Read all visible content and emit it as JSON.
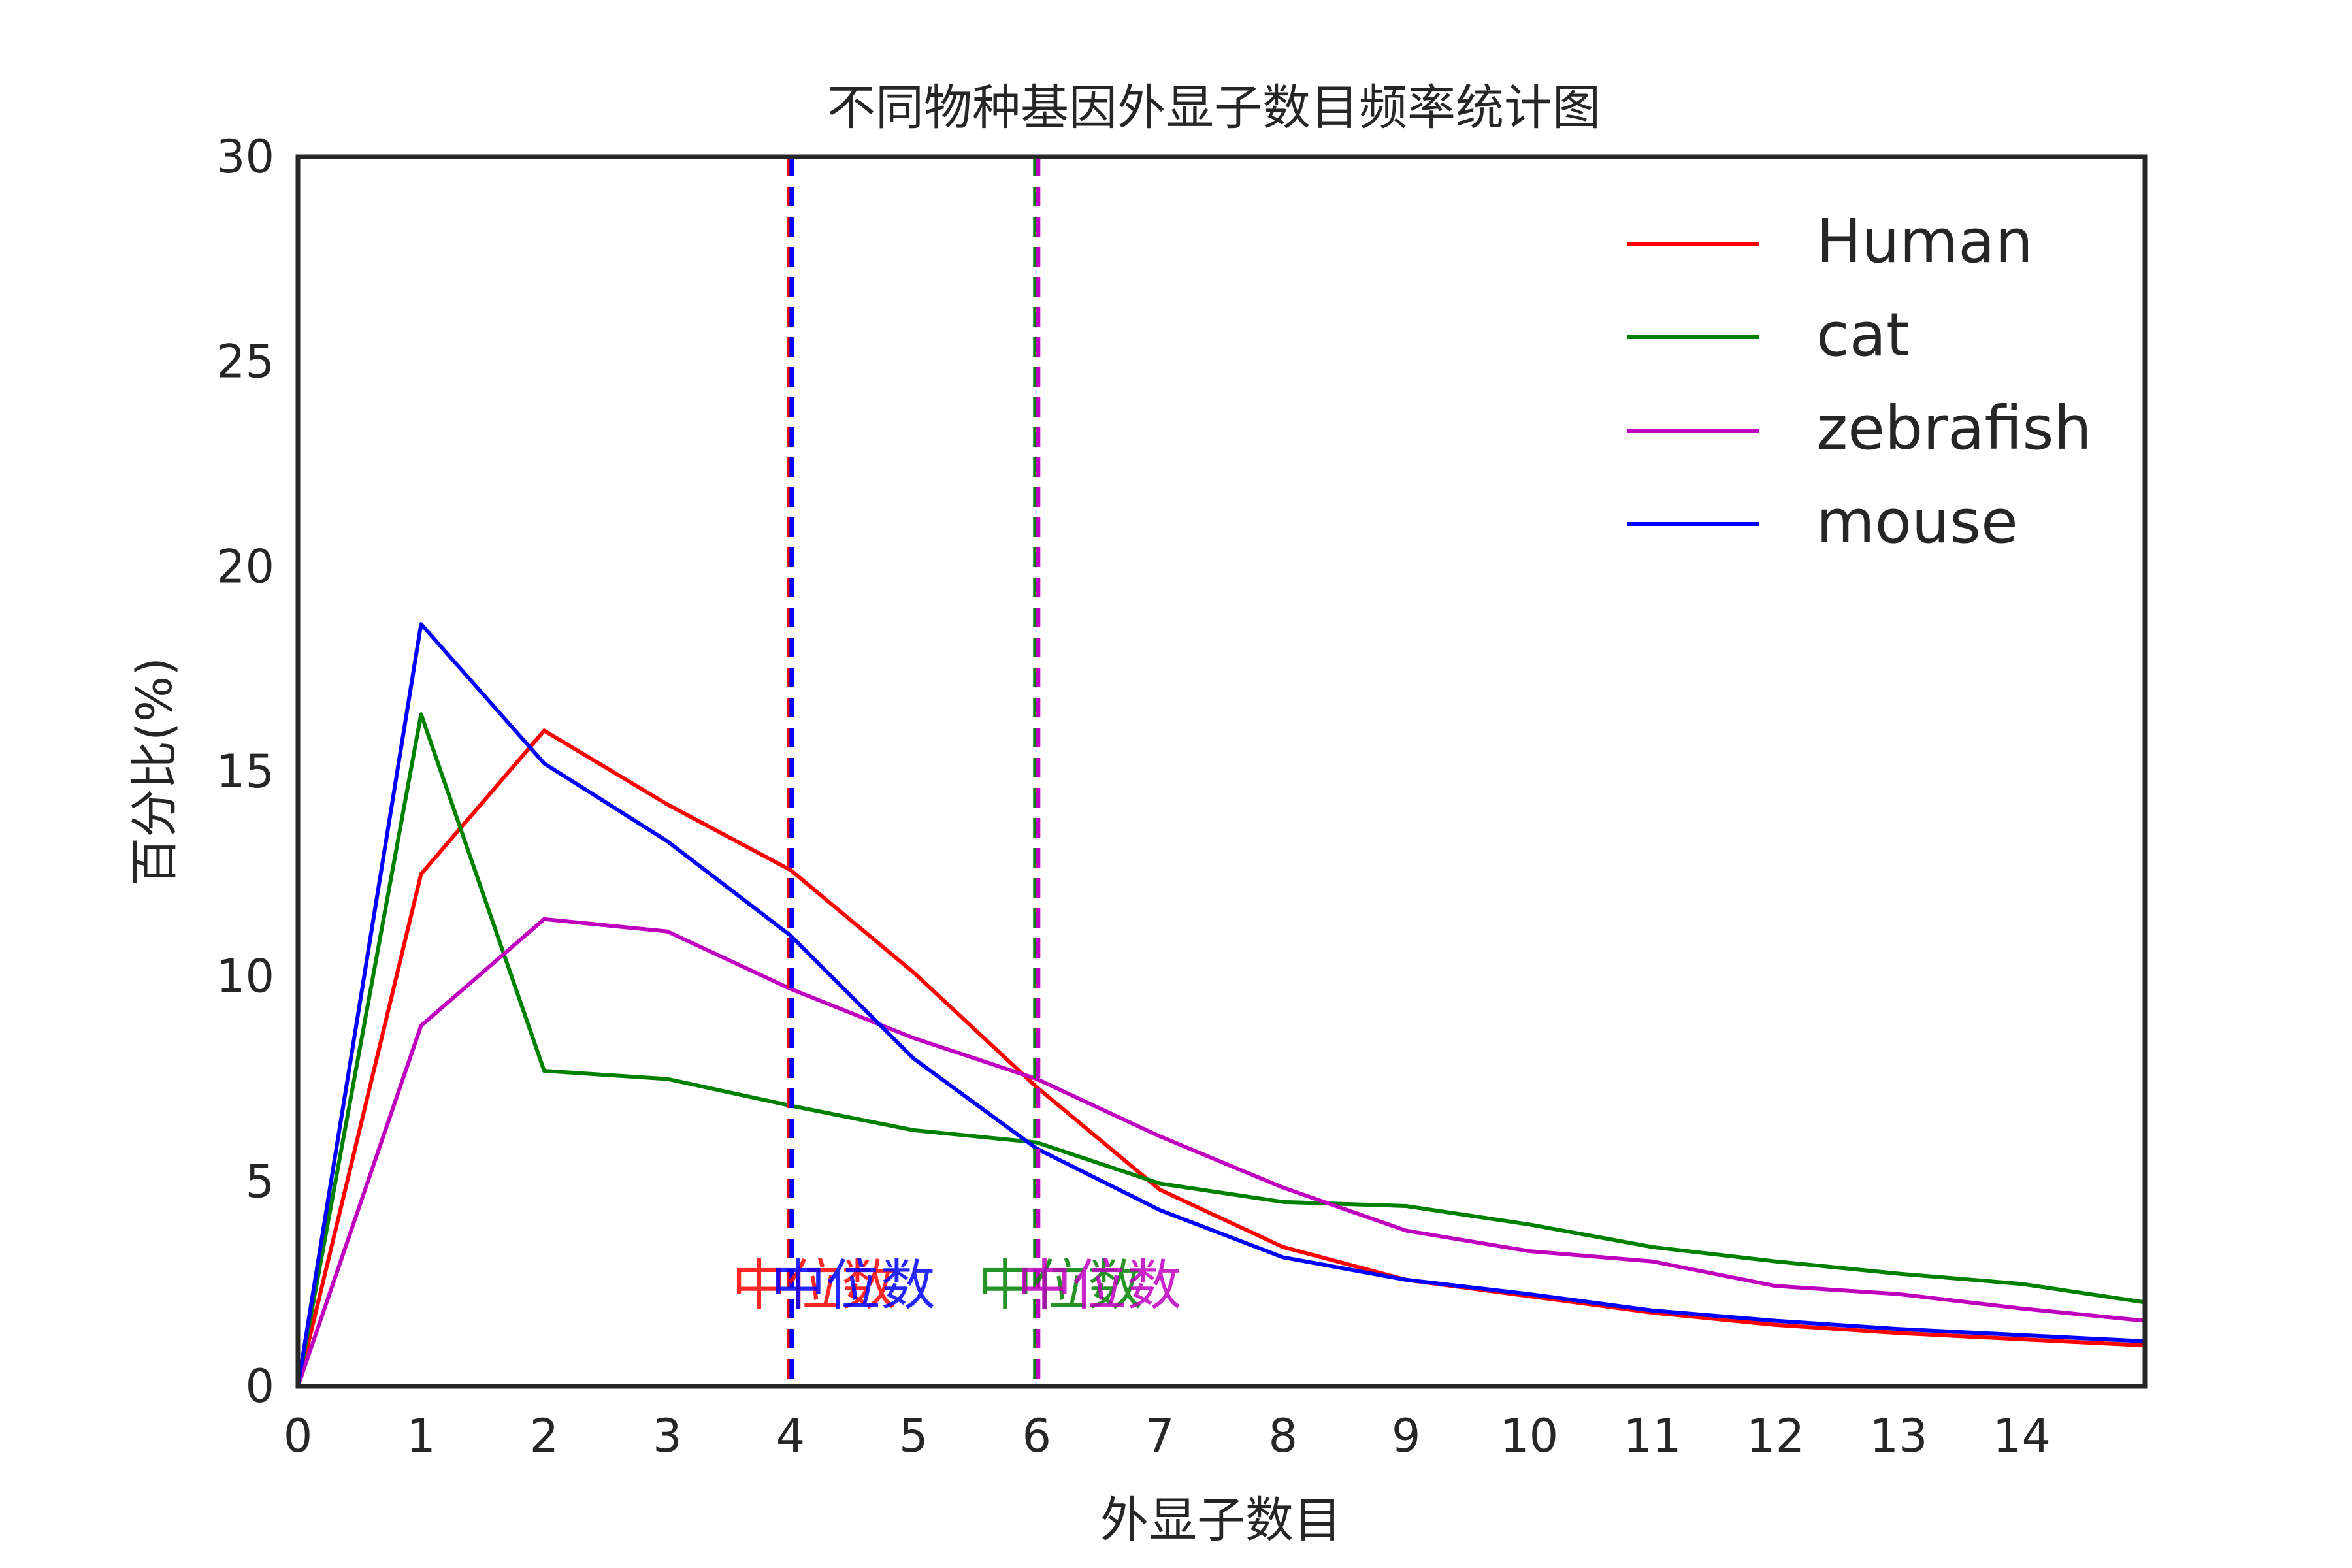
{
  "chart_data": {
    "type": "line",
    "title": "不同物种基因外显子数目频率统计图",
    "xlabel": "外显子数目",
    "ylabel": "百分比(%)",
    "xlim": [
      0,
      15
    ],
    "ylim": [
      0,
      30
    ],
    "xticks": [
      0,
      1,
      2,
      3,
      4,
      5,
      6,
      7,
      8,
      9,
      10,
      11,
      12,
      13,
      14
    ],
    "yticks": [
      0,
      5,
      10,
      15,
      20,
      25,
      30
    ],
    "grid": false,
    "legend_position": "top-right",
    "x": [
      0,
      1,
      2,
      3,
      4,
      5,
      6,
      7,
      8,
      9,
      10,
      11,
      12,
      13,
      14,
      15
    ],
    "series": [
      {
        "name": "Human",
        "color": "#ff0000",
        "values": [
          0,
          12.5,
          16.0,
          14.2,
          12.6,
          10.1,
          7.3,
          4.8,
          3.4,
          2.6,
          2.2,
          1.8,
          1.5,
          1.3,
          1.15,
          1.0
        ]
      },
      {
        "name": "cat",
        "color": "#008000",
        "values": [
          0,
          16.4,
          7.7,
          7.5,
          6.85,
          6.25,
          5.95,
          4.95,
          4.5,
          4.4,
          3.95,
          3.4,
          3.05,
          2.75,
          2.5,
          2.05
        ]
      },
      {
        "name": "zebrafish",
        "color": "#bf00bf",
        "values": [
          0,
          8.8,
          11.4,
          11.1,
          9.7,
          8.5,
          7.5,
          6.1,
          4.85,
          3.8,
          3.3,
          3.05,
          2.45,
          2.25,
          1.9,
          1.6
        ]
      },
      {
        "name": "mouse",
        "color": "#0000ff",
        "values": [
          0,
          18.6,
          15.2,
          13.3,
          11.0,
          8.0,
          5.8,
          4.3,
          3.15,
          2.6,
          2.25,
          1.85,
          1.6,
          1.4,
          1.25,
          1.1
        ]
      }
    ],
    "medians": [
      {
        "series": "Human",
        "x": 4,
        "color": "#ff0000",
        "label": "中位数"
      },
      {
        "series": "mouse",
        "x": 4,
        "color": "#0000ff",
        "label": "中位数"
      },
      {
        "series": "cat",
        "x": 6,
        "color": "#008000",
        "label": "中位数"
      },
      {
        "series": "zebrafish",
        "x": 6,
        "color": "#bf00bf",
        "label": "中位数"
      }
    ],
    "median_label_y": 2.4
  }
}
